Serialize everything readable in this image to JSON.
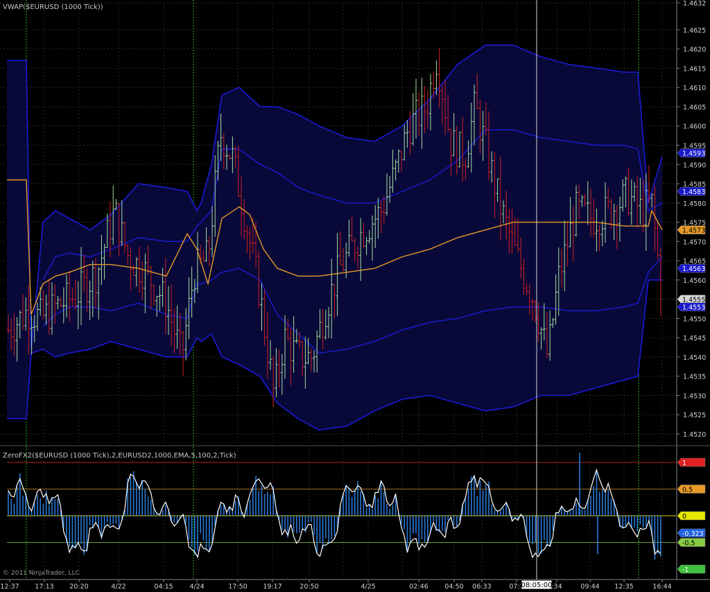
{
  "upper_panel": {
    "title": "VWAP($EURUSD (1000 Tick))",
    "price_axis_labels": [
      "1.4632",
      "1.4625",
      "1.4620",
      "1.4615",
      "1.4610",
      "1.4605",
      "1.4600",
      "1.4595",
      "1.4590",
      "1.4585",
      "1.4580",
      "1.4575",
      "1.4570",
      "1.4565",
      "1.4560",
      "1.4555",
      "1.4550",
      "1.4545",
      "1.4540",
      "1.4535",
      "1.4530",
      "1.4525",
      "1.4520"
    ],
    "price_tags": [
      {
        "text": "1.4593",
        "color": "#1a1acc",
        "y": 1.4593
      },
      {
        "text": "1.4583",
        "color": "#1a1acc",
        "y": 1.4583
      },
      {
        "text": "1.4573",
        "color": "#e89a28",
        "y": 1.4573
      },
      {
        "text": "1.4563",
        "color": "#1a1acc",
        "y": 1.4563
      },
      {
        "text": "1.4555",
        "color": "#d8d8d8",
        "y": 1.4555
      },
      {
        "text": "1.4553",
        "color": "#1a1acc",
        "y": 1.4553
      }
    ]
  },
  "lower_panel": {
    "title": "ZeroFX2($EURUSD (1000 Tick),2,EURUSD2,1000,EMA,5,100,2,Tick)",
    "level_tags": [
      {
        "text": "1",
        "color": "#e02020",
        "y": 1
      },
      {
        "text": "0.5",
        "color": "#e89a28",
        "y": 0.5
      },
      {
        "text": "0",
        "color": "#e8e800",
        "y": 0
      },
      {
        "text": "-0.323",
        "color": "#2060e0",
        "y": -0.323
      },
      {
        "text": "-0.5",
        "color": "#88cc44",
        "y": -0.5
      },
      {
        "text": "-1",
        "color": "#40c040",
        "y": -1
      }
    ]
  },
  "time_axis_labels": [
    "12:37",
    "17:13",
    "20:20",
    "4/22",
    "04:15",
    "4/24",
    "17:50",
    "19:17",
    "20:50",
    "4/25",
    "02:46",
    "04:50",
    "06:33",
    "07:3",
    "08:05:00",
    ":34",
    "09:44",
    "12:35",
    "16:44"
  ],
  "copyright": "© 2011 NinjaTrader, LLC",
  "cursor_time_label": "08:05:00",
  "colors": {
    "background": "#000000",
    "band_fill": "#0a0a3c",
    "band_line": "#1a1ad8",
    "vwap": "#e89a28",
    "up_bar": "#a8e0a0",
    "down_bar": "#d02020",
    "grid": "#2a2a2a",
    "session": "#20c020",
    "histogram": "#2a7ad8",
    "oscillator": "#ffffff"
  },
  "chart_data": [
    {
      "type": "line",
      "title": "VWAP($EURUSD (1000 Tick))",
      "ylim": [
        1.4516,
        1.4632
      ],
      "series": [
        {
          "name": "VWAP",
          "values": [
            1.4586,
            1.4586,
            1.4551,
            1.4559,
            1.4561,
            1.4562,
            1.4564,
            1.4564,
            1.4563,
            1.4561,
            1.4572,
            1.4568,
            1.4559,
            1.4576,
            1.4579,
            1.4577,
            1.4568,
            1.4563,
            1.4561,
            1.4561,
            1.4562,
            1.4563,
            1.4566,
            1.4568,
            1.4571,
            1.4573,
            1.4575,
            1.4575,
            1.4575,
            1.4575,
            1.4574,
            1.4574,
            1.4574,
            1.4574,
            1.4578,
            1.4573
          ]
        }
      ],
      "x_time_labels": [
        "12:37",
        "17:13",
        "20:20",
        "4/22",
        "04:15",
        "4/24",
        "17:50",
        "19:17",
        "20:50",
        "4/25",
        "02:46",
        "04:50",
        "06:33",
        "07:3",
        "08:05:00",
        ":34",
        "09:44",
        "12:35",
        "16:44"
      ]
    },
    {
      "type": "line",
      "title": "ZeroFX2($EURUSD (1000 Tick),2,EURUSD2,1000,EMA,5,100,2,Tick)",
      "ylim": [
        -1.05,
        1.1
      ],
      "levels": [
        1,
        0.5,
        0,
        -0.5,
        -1
      ],
      "last_value": -0.323
    }
  ]
}
